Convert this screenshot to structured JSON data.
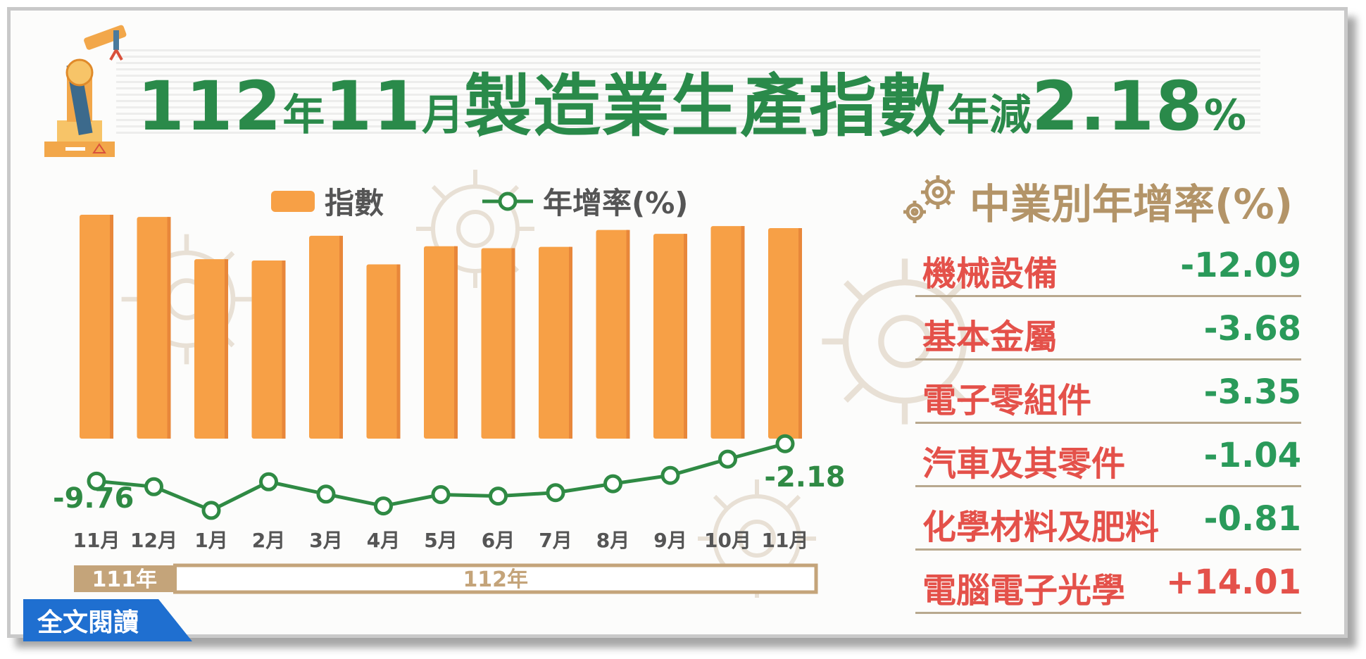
{
  "title": {
    "part1": "112",
    "part2": "年",
    "part3": "11",
    "part4": "月",
    "part5": "製造業生產指數",
    "part6": "年減",
    "part7": "2.18",
    "part8": "%"
  },
  "legend": {
    "index_label": "指數",
    "growth_label": "年增率(%)"
  },
  "colors": {
    "bar": "#f7a046",
    "line": "#2f8a44",
    "title": "#2a8a4a",
    "highlight_label": "#e9891e",
    "year_bar": "#c4a47a"
  },
  "chart_data": {
    "type": "bar",
    "categories": [
      "11月",
      "12月",
      "1月",
      "2月",
      "3月",
      "4月",
      "5月",
      "6月",
      "7月",
      "8月",
      "9月",
      "10月",
      "11月"
    ],
    "series": [
      {
        "name": "指數",
        "type": "bar",
        "values": [
          94.44,
          94.1,
          87.6,
          87.4,
          91.2,
          86.8,
          89.6,
          89.3,
          89.5,
          92.1,
          91.5,
          92.7,
          92.38
        ],
        "labeled_values": {
          "0": "94.44",
          "12": "92.38"
        }
      },
      {
        "name": "年增率(%)",
        "type": "line",
        "values": [
          -9.76,
          -10.9,
          -15.7,
          -9.9,
          -12.4,
          -14.8,
          -12.5,
          -12.8,
          -12.1,
          -10.3,
          -8.6,
          -5.3,
          -2.18
        ],
        "labeled_values": {
          "0": "-9.76",
          "12": "-2.18"
        }
      }
    ],
    "year_groups": [
      {
        "label": "111年",
        "months": 2
      },
      {
        "label": "112年",
        "months": 11
      }
    ],
    "gridlines": false
  },
  "industries": {
    "title": "中業別年增率(%)",
    "rows": [
      {
        "name": "機械設備",
        "value": "-12.09"
      },
      {
        "name": "基本金屬",
        "value": "-3.68"
      },
      {
        "name": "電子零組件",
        "value": "-3.35"
      },
      {
        "name": "汽車及其零件",
        "value": "-1.04"
      },
      {
        "name": "化學材料及肥料",
        "value": "-0.81"
      },
      {
        "name": "電腦電子光學",
        "value": "+14.01"
      }
    ]
  },
  "read_more": "全文閱讀",
  "icons": [
    "robot-arm-icon",
    "gear-icon"
  ]
}
